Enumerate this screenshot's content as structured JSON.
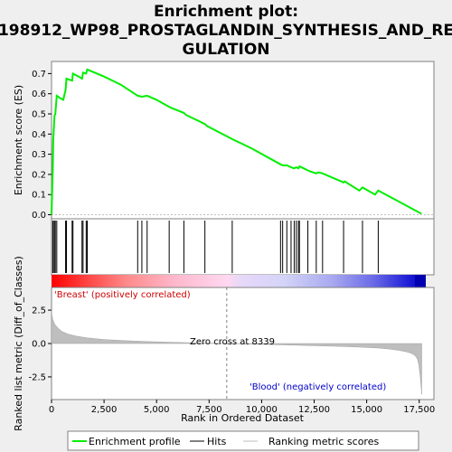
{
  "chart_data": {
    "type": "line",
    "title_lines": [
      "Enrichment plot:",
      "198912_WP98_PROSTAGLANDIN_SYNTHESIS_AND_RE",
      "GULATION"
    ],
    "top_panel": {
      "ylabel": "Enrichment score (ES)",
      "ylim": [
        -0.02,
        0.76
      ],
      "yticks": [
        "0.0",
        "0.1",
        "0.2",
        "0.3",
        "0.4",
        "0.5",
        "0.6",
        "0.7"
      ],
      "series": [
        {
          "name": "Enrichment profile",
          "color": "#00ee00",
          "x": [
            0,
            60,
            80,
            140,
            180,
            250,
            330,
            380,
            560,
            670,
            710,
            980,
            1020,
            1290,
            1450,
            1500,
            1650,
            1700,
            2500,
            3300,
            4100,
            4300,
            4550,
            5000,
            5600,
            5700,
            6300,
            6400,
            7300,
            7400,
            8600,
            9500,
            10900,
            11000,
            11200,
            11400,
            11550,
            11650,
            11750,
            11800,
            12000,
            12200,
            12300,
            12600,
            12700,
            12900,
            13900,
            13950,
            14650,
            14800,
            15400,
            15550,
            17600
          ],
          "values": [
            0.0,
            0.23,
            0.37,
            0.49,
            0.5,
            0.59,
            0.585,
            0.58,
            0.57,
            0.62,
            0.675,
            0.665,
            0.7,
            0.685,
            0.675,
            0.705,
            0.7,
            0.72,
            0.685,
            0.645,
            0.59,
            0.585,
            0.59,
            0.57,
            0.535,
            0.53,
            0.505,
            0.495,
            0.45,
            0.44,
            0.375,
            0.33,
            0.25,
            0.245,
            0.245,
            0.235,
            0.23,
            0.235,
            0.23,
            0.24,
            0.23,
            0.22,
            0.215,
            0.205,
            0.21,
            0.205,
            0.16,
            0.165,
            0.12,
            0.135,
            0.1,
            0.12,
            0.005
          ]
        }
      ]
    },
    "hits": [
      60,
      80,
      140,
      180,
      250,
      670,
      710,
      980,
      1020,
      1450,
      1500,
      1650,
      1700,
      4100,
      4300,
      4550,
      5600,
      6300,
      7300,
      8600,
      10900,
      11000,
      11200,
      11400,
      11550,
      11650,
      11750,
      11800,
      12200,
      12600,
      12900,
      13900,
      14800,
      15550
    ],
    "middle_labels": {
      "positive": "'Breast' (positively correlated)",
      "negative": "'Blood' (negatively correlated)"
    },
    "bottom_panel": {
      "ylabel": "Ranked list metric (Diff_of_Classes)",
      "ylim": [
        -4.2,
        4.2
      ],
      "yticks": [
        "-2.5",
        "0.0",
        "2.5"
      ],
      "xlabel": "Rank in Ordered Dataset",
      "xlim": [
        0,
        18200
      ],
      "xticks": [
        "0",
        "2,500",
        "5,000",
        "7,500",
        "10,000",
        "12,500",
        "15,000",
        "17,500"
      ],
      "zero_cross_label": "Zero cross at 8339",
      "zero_cross": 8339,
      "metric_x": [
        0,
        20,
        60,
        120,
        200,
        350,
        500,
        800,
        1200,
        1700,
        2500,
        3500,
        4500,
        5500,
        6500,
        7500,
        8339,
        9500,
        10500,
        11500,
        12500,
        13500,
        14500,
        15500,
        16000,
        16500,
        16900,
        17100,
        17250,
        17350,
        17420,
        17480,
        17540,
        17590,
        17620
      ],
      "metric_values": [
        2.5,
        2.1,
        1.8,
        1.55,
        1.35,
        1.1,
        0.9,
        0.7,
        0.55,
        0.42,
        0.3,
        0.22,
        0.15,
        0.1,
        0.06,
        0.03,
        0.0,
        -0.04,
        -0.08,
        -0.12,
        -0.16,
        -0.2,
        -0.26,
        -0.33,
        -0.4,
        -0.5,
        -0.62,
        -0.72,
        -0.85,
        -1.0,
        -1.2,
        -1.6,
        -2.4,
        -3.2,
        -3.8
      ]
    },
    "legend": [
      "Enrichment profile",
      "Hits",
      "Ranking metric scores"
    ],
    "colors": {
      "enrichment": "#00ee00",
      "hits": "#000000",
      "metric": "#bebebe",
      "positive": "#ff0000",
      "negative": "#0000ff",
      "zero_line": "#808080"
    }
  }
}
